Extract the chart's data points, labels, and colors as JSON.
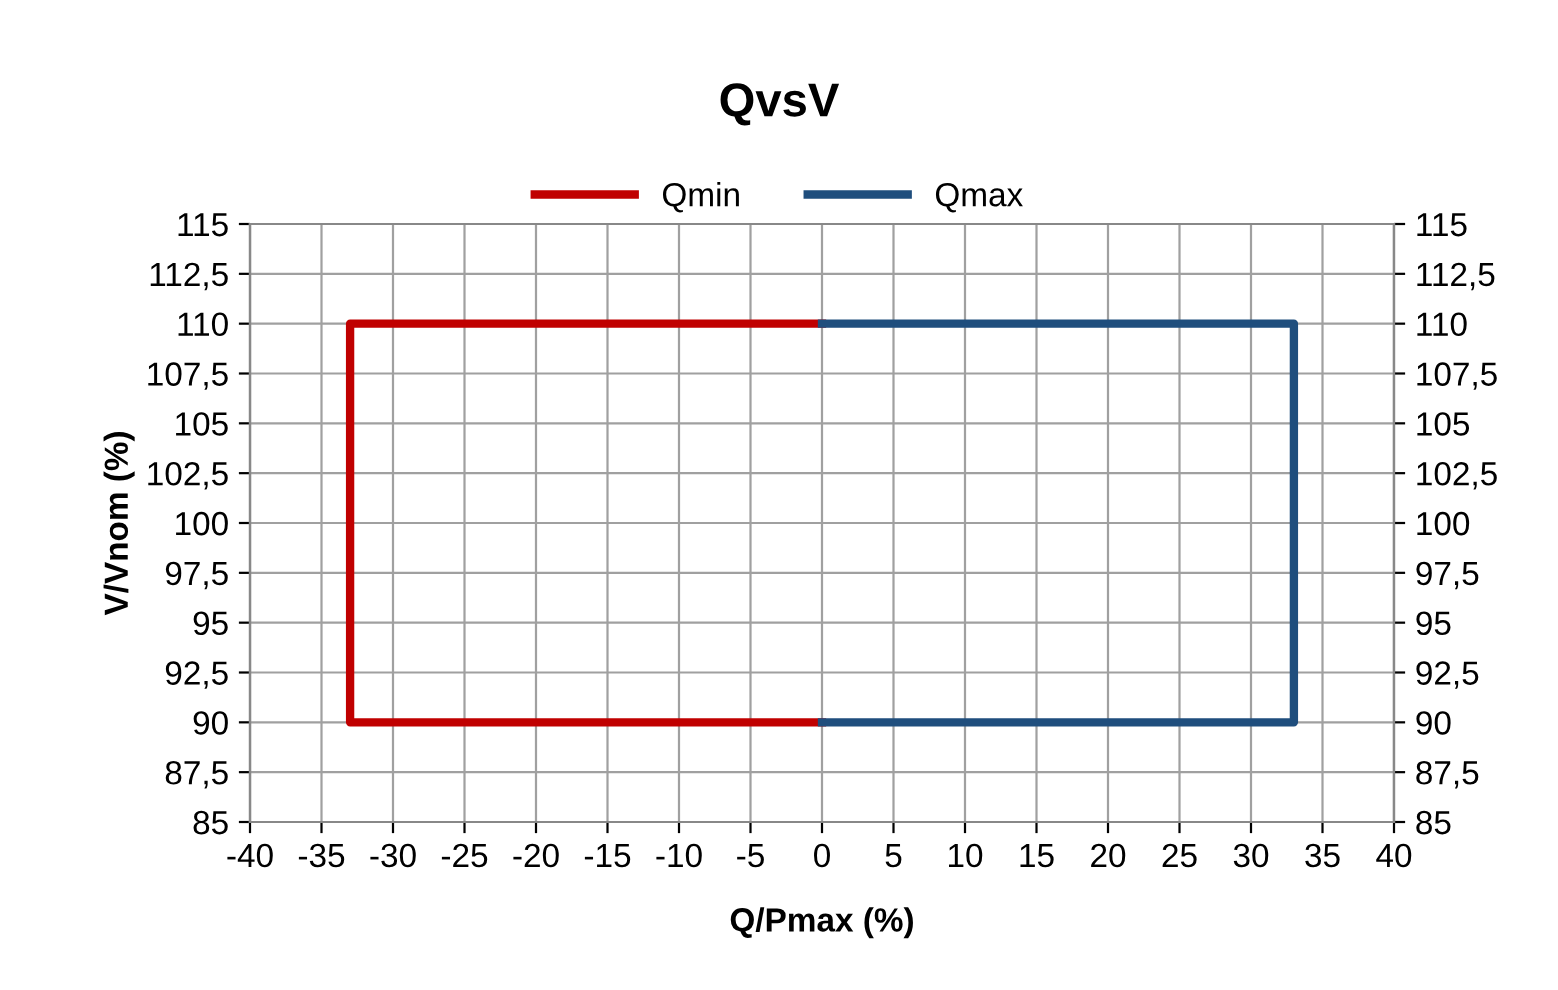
{
  "chart_data": {
    "type": "line",
    "title": "QvsV",
    "xlabel": "Q/Pmax (%)",
    "ylabel": "V/Vnom (%)",
    "series": [
      {
        "name": "Qmin",
        "color": "#c00000",
        "x": [
          0,
          -33,
          -33,
          0
        ],
        "values": [
          110,
          110,
          90,
          90
        ]
      },
      {
        "name": "Qmax",
        "color": "#1f4e7d",
        "x": [
          0,
          33,
          33,
          0
        ],
        "values": [
          110,
          110,
          90,
          90
        ]
      }
    ],
    "xlim": [
      -40,
      40
    ],
    "xticks": [
      -40,
      -35,
      -30,
      -25,
      -20,
      -15,
      -10,
      -5,
      0,
      5,
      10,
      15,
      20,
      25,
      30,
      35,
      40
    ],
    "ylim": [
      85,
      115
    ],
    "yticks": [
      85,
      {
        "value": 87.5,
        "label": "87,5"
      },
      90,
      {
        "value": 92.5,
        "label": "92,5"
      },
      95,
      {
        "value": 97.5,
        "label": "97,5"
      },
      100,
      {
        "value": 102.5,
        "label": "102,5"
      },
      105,
      {
        "value": 107.5,
        "label": "107,5"
      },
      110,
      {
        "value": 112.5,
        "label": "112,5"
      },
      115
    ],
    "y2lim": [
      85,
      115
    ],
    "y2ticks": [
      85,
      {
        "value": 87.5,
        "label": "87,5"
      },
      90,
      {
        "value": 92.5,
        "label": "92,5"
      },
      95,
      {
        "value": 97.5,
        "label": "97,5"
      },
      100,
      {
        "value": 102.5,
        "label": "102,5"
      },
      105,
      {
        "value": 107.5,
        "label": "107,5"
      },
      110,
      {
        "value": 112.5,
        "label": "112,5"
      },
      115
    ],
    "grid": true,
    "legend": "top",
    "marker": "none",
    "line_style": "solid"
  }
}
